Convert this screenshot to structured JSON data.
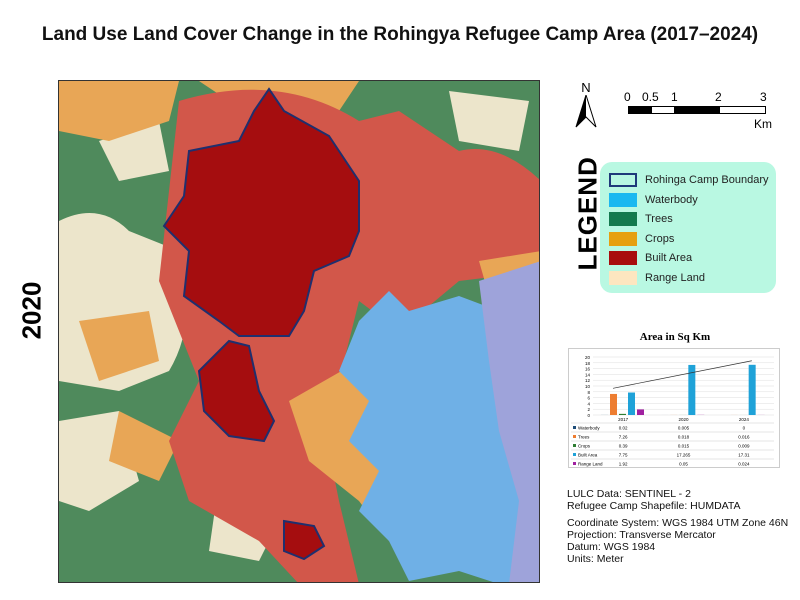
{
  "title": "Land Use Land Cover Change in the Rohingya Refugee Camp Area (2017–2024)",
  "year": "2020",
  "north_label": "N",
  "scale": {
    "ticks": [
      "0",
      "0.5",
      "1",
      "2",
      "3"
    ],
    "unit": "Km"
  },
  "legend": {
    "heading": "LEGEND",
    "items": [
      {
        "label": "Rohinga Camp Boundary",
        "color": "#b9f8e2",
        "border": "#1f3a7a"
      },
      {
        "label": "Waterbody",
        "color": "#1bb8f0"
      },
      {
        "label": "Trees",
        "color": "#137a4e"
      },
      {
        "label": "Crops",
        "color": "#e6a010"
      },
      {
        "label": "Built Area",
        "color": "#a80d0d"
      },
      {
        "label": "Range Land",
        "color": "#fde6c0"
      }
    ]
  },
  "colors": {
    "trees": "#4f8a5c",
    "built": "#d2574a",
    "camp": "#a50d0f",
    "crops": "#e8a656",
    "range": "#ece5cb",
    "water": "#6fb0e6",
    "lavender": "#9ea3da"
  },
  "chart_data": {
    "type": "bar",
    "title": "Area in Sq Km",
    "ylim": [
      0,
      20
    ],
    "yticks": [
      0,
      2,
      4,
      6,
      8,
      10,
      12,
      14,
      16,
      18,
      20
    ],
    "categories": [
      "2017",
      "2020",
      "2024"
    ],
    "series": [
      {
        "name": "Waterbody",
        "color": "#1f4e79",
        "values": [
          0.02,
          0.005,
          0
        ]
      },
      {
        "name": "Trees",
        "color": "#ed7d31",
        "values": [
          7.26,
          0.018,
          0.016
        ]
      },
      {
        "name": "Crops",
        "color": "#2e7d32",
        "values": [
          0.39,
          0.015,
          0.009
        ]
      },
      {
        "name": "Built Area",
        "color": "#1fa2d8",
        "values": [
          7.75,
          17.265,
          17.31
        ]
      },
      {
        "name": "Range Land",
        "color": "#a020a0",
        "values": [
          1.92,
          0.05,
          0.024
        ]
      }
    ],
    "table": [
      [
        "Waterbody",
        "0.02",
        "0.005",
        "0"
      ],
      [
        "Trees",
        "7.26",
        "0.018",
        "0.016"
      ],
      [
        "Crops",
        "0.39",
        "0.015",
        "0.009"
      ],
      [
        "Built Area",
        "7.75",
        "17.265",
        "17.31"
      ],
      [
        "Range Land",
        "1.92",
        "0.05",
        "0.024"
      ]
    ]
  },
  "info": [
    "LULC Data: SENTINEL - 2",
    "Refugee Camp Shapefile: HUMDATA",
    "",
    "Coordinate System: WGS 1984 UTM Zone 46N",
    "Projection: Transverse Mercator",
    "Datum: WGS 1984",
    "Units: Meter"
  ]
}
